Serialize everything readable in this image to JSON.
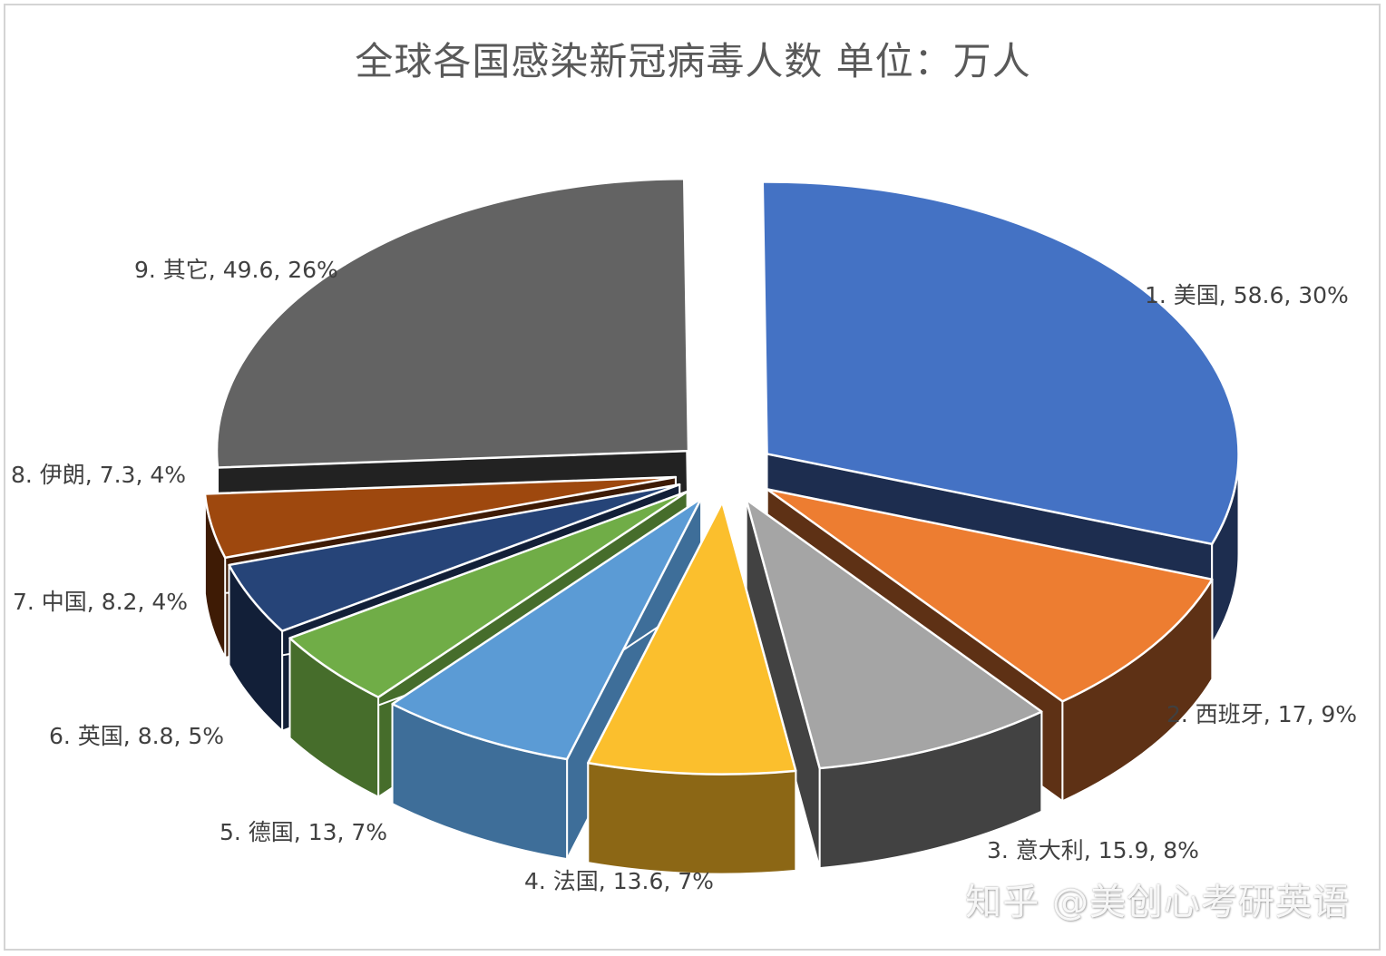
{
  "chart_data": {
    "type": "pie",
    "title": "全球各国感染新冠病毒人数 单位：万人",
    "slices": [
      {
        "label": "1. 美国, 58.6, 30%",
        "name": "美国",
        "value": 58.6,
        "percent": 30,
        "color": "#4472C4",
        "side": "#1D2D4F"
      },
      {
        "label": "2. 西班牙, 17, 9%",
        "name": "西班牙",
        "value": 17,
        "percent": 9,
        "color": "#ED7D31",
        "side": "#5E3115"
      },
      {
        "label": "3. 意大利, 15.9, 8%",
        "name": "意大利",
        "value": 15.9,
        "percent": 8,
        "color": "#A5A5A5",
        "side": "#424242"
      },
      {
        "label": "4. 法国, 13.6, 7%",
        "name": "法国",
        "value": 13.6,
        "percent": 7,
        "color": "#FBBF2D",
        "side": "#8C6715"
      },
      {
        "label": "5. 德国, 13, 7%",
        "name": "德国",
        "value": 13,
        "percent": 7,
        "color": "#5B9BD5",
        "side": "#3E6E99"
      },
      {
        "label": "6. 英国, 8.8, 5%",
        "name": "英国",
        "value": 8.8,
        "percent": 5,
        "color": "#70AD47",
        "side": "#466D2B"
      },
      {
        "label": "7. 中国, 8.2, 4%",
        "name": "中国",
        "value": 8.2,
        "percent": 4,
        "color": "#264478",
        "side": "#121F38"
      },
      {
        "label": "8. 伊朗, 7.3, 4%",
        "name": "伊朗",
        "value": 7.3,
        "percent": 4,
        "color": "#9E480E",
        "side": "#3E1B05"
      },
      {
        "label": "9. 其它, 49.6, 26%",
        "name": "其它",
        "value": 49.6,
        "percent": 26,
        "color": "#636363",
        "side": "#222222"
      }
    ],
    "legend": "none"
  },
  "watermark": "知乎 @美创心考研英语"
}
